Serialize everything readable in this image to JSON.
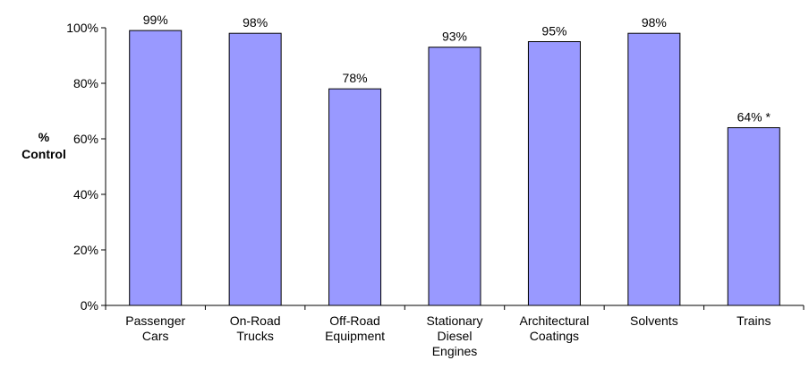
{
  "chart_data": {
    "type": "bar",
    "title": "",
    "xlabel": "",
    "ylabel_lines": [
      "%",
      "Control"
    ],
    "categories": [
      [
        "Passenger",
        "Cars"
      ],
      [
        "On-Road",
        "Trucks"
      ],
      [
        "Off-Road",
        "Equipment"
      ],
      [
        "Stationary",
        "Diesel",
        "Engines"
      ],
      [
        "Architectural",
        "Coatings"
      ],
      [
        "Solvents"
      ],
      [
        "Trains"
      ]
    ],
    "values": [
      99,
      98,
      78,
      93,
      95,
      98,
      64
    ],
    "data_labels": [
      "99%",
      "98%",
      "78%",
      "93%",
      "95%",
      "98%",
      "64% *"
    ],
    "ylim": [
      0,
      100
    ],
    "yticks": [
      0,
      20,
      40,
      60,
      80,
      100
    ],
    "ytick_labels": [
      "0%",
      "20%",
      "40%",
      "60%",
      "80%",
      "100%"
    ],
    "grid": false,
    "legend": "none",
    "colors": {
      "bar_fill": "#9999ff",
      "bar_stroke": "#000000",
      "axis": "#000000"
    }
  }
}
